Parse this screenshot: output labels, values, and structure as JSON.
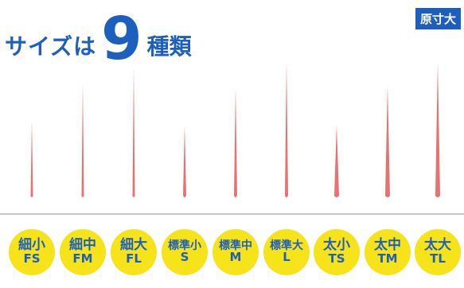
{
  "title": {
    "prefix": "サイズは",
    "number": "9",
    "suffix": "種類"
  },
  "badge": "原寸大",
  "colors": {
    "accent": "#1d5fbf",
    "label_bg": "#f7e31a",
    "needle": "#e77272"
  },
  "needles": [
    {
      "jp": "細小",
      "code": "FS",
      "length": 0.37
    },
    {
      "jp": "細中",
      "code": "FM",
      "length": 0.55
    },
    {
      "jp": "細大",
      "code": "FL",
      "length": 0.63
    },
    {
      "jp": "標準小",
      "code": "S",
      "length": 0.35
    },
    {
      "jp": "標準中",
      "code": "M",
      "length": 0.53
    },
    {
      "jp": "標準大",
      "code": "L",
      "length": 0.66
    },
    {
      "jp": "太小",
      "code": "TS",
      "length": 0.35
    },
    {
      "jp": "太中",
      "code": "TM",
      "length": 0.54
    },
    {
      "jp": "太大",
      "code": "TL",
      "length": 0.65
    }
  ]
}
